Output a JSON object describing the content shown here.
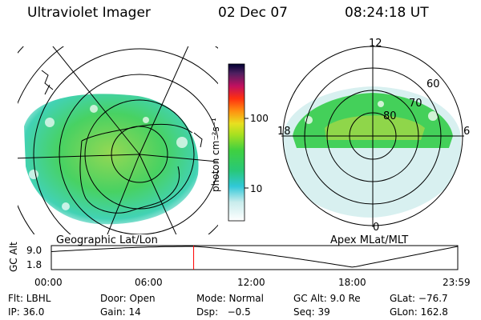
{
  "header": {
    "instrument": "Ultraviolet Imager",
    "date": "02 Dec 07",
    "time": "08:24:18 UT"
  },
  "left_panel": {
    "caption": "Geographic Lat/Lon"
  },
  "right_panel": {
    "caption": "Apex MLat/MLT",
    "mlt_labels": [
      "12",
      "18",
      "6",
      "0"
    ],
    "mlat_labels": [
      "60",
      "70",
      "80"
    ]
  },
  "colorbar": {
    "unit_label": "photon cm⁻²s⁻¹",
    "ticks": [
      "100",
      "10"
    ],
    "scale": "log"
  },
  "altitude_plot": {
    "ylabel": "GC Alt",
    "y_ticks": [
      "9.0",
      "1.8"
    ],
    "x_ticks": [
      "00:00",
      "06:00",
      "12:00",
      "18:00",
      "23:59"
    ],
    "current_time_hours": 8.405
  },
  "params": {
    "row1": {
      "flt": "Flt: LBHL",
      "door": "Door: Open",
      "mode": "Mode: Normal",
      "gcalt": "GC Alt: 9.0 Re",
      "glat": "GLat: −76.7"
    },
    "row2": {
      "ip": "IP: 36.0",
      "gain": "Gain: 14",
      "dsp": "Dsp:   −0.5",
      "seq": "Seq: 39",
      "glon": "GLon: 162.8"
    }
  },
  "colors": {
    "accent_marker": "#ff0000",
    "scale_low": "#ffffff",
    "scale_mid": "#22cc55",
    "scale_high": "#000033"
  }
}
